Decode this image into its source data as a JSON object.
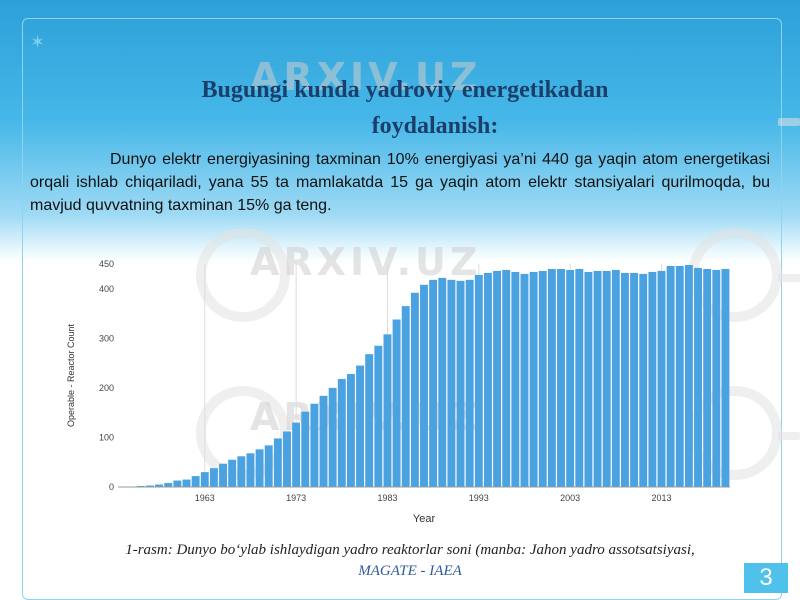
{
  "slide": {
    "title_line1": "Bugungi kunda yadroviy energetikadan",
    "title_line2": "foydalanish:",
    "paragraph": "Dunyo elektr energiyasining taxminan 10% energiyasi ya’ni 440 ga yaqin atom energetikasi orqali ishlab chiqariladi, yana 55 ta mamlakatda 15 ga yaqin atom elektr stansiyalari qurilmoqda, bu mavjud quvvatning taxminan 15% ga teng.",
    "caption_num": "1",
    "caption_main": "-rasm: Dunyo bo‘ylab ishlaydigan yadro reaktorlar soni (manba: Jahon yadro assotsatsiyasi, ",
    "caption_source": "MAGATE  -  IAEA",
    "page_number": "3",
    "watermark": "ARXIV.UZ"
  },
  "colors": {
    "bar": "#4aa3e0",
    "title": "#1a3f6b",
    "accent": "#4fc1ea",
    "grid": "#dddddd"
  },
  "chart_data": {
    "type": "bar",
    "xlabel": "Year",
    "ylabel": "Operable - Reactor Count",
    "x_start": 1954,
    "x_end": 2021,
    "xtick_labels": [
      "1963",
      "1973",
      "1983",
      "1993",
      "2003",
      "2013"
    ],
    "ytick_labels": [
      "0",
      "100",
      "200",
      "300",
      "400",
      "450"
    ],
    "ylim": [
      0,
      450
    ],
    "grid": "vertical",
    "values": [
      1,
      1,
      2,
      3,
      5,
      8,
      13,
      15,
      22,
      30,
      38,
      47,
      55,
      62,
      68,
      76,
      84,
      98,
      112,
      130,
      152,
      168,
      184,
      200,
      218,
      228,
      245,
      268,
      285,
      308,
      338,
      365,
      392,
      408,
      418,
      422,
      418,
      416,
      418,
      428,
      432,
      436,
      438,
      434,
      430,
      434,
      436,
      440,
      440,
      438,
      440,
      434,
      436,
      436,
      438,
      432,
      432,
      430,
      434,
      436,
      446,
      446,
      448,
      442,
      440,
      438,
      440
    ]
  }
}
